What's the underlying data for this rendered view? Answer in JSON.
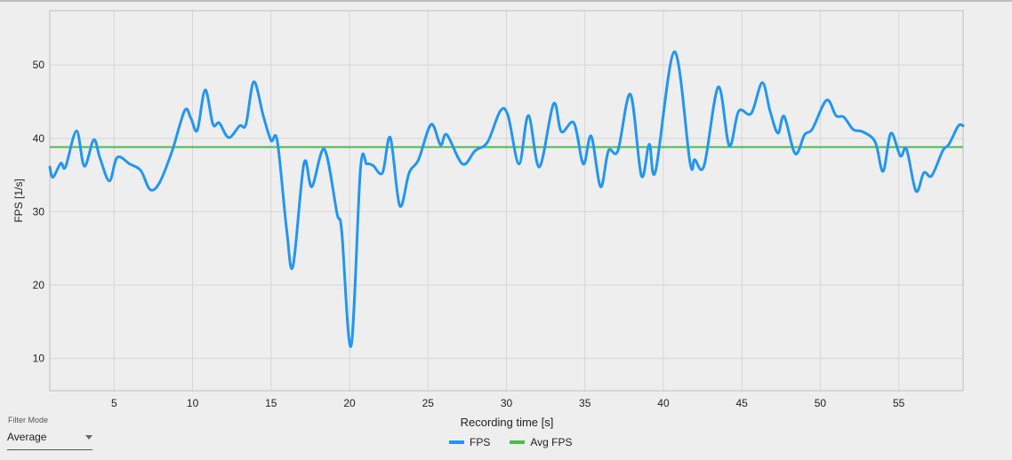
{
  "filter": {
    "label": "Filter Mode",
    "value": "Average"
  },
  "colors": {
    "fps": "#2196f3",
    "avg": "#4cbb4c",
    "grid": "#d6d6d6",
    "axis": "#bdbdbd"
  },
  "chart_data": {
    "type": "line",
    "title": "",
    "xlabel": "Recording time [s]",
    "ylabel": "FPS [1/s]",
    "xlim": [
      0.9,
      59.1
    ],
    "ylim": [
      5.6,
      57.4
    ],
    "xticks": [
      "5",
      "10",
      "15",
      "20",
      "25",
      "30",
      "35",
      "40",
      "45",
      "50",
      "55"
    ],
    "yticks": [
      "10",
      "20",
      "30",
      "40",
      "50"
    ],
    "grid": true,
    "legend": "bottom",
    "series": [
      {
        "name": "FPS",
        "x": [
          0.9,
          1.1,
          1.6,
          1.9,
          2.6,
          3.1,
          3.7,
          4.1,
          4.7,
          5.2,
          6.0,
          6.7,
          7.3,
          7.9,
          8.7,
          9.5,
          9.9,
          10.3,
          10.8,
          11.3,
          11.7,
          12.3,
          13.0,
          13.4,
          13.9,
          14.5,
          15.0,
          15.4,
          16.0,
          16.4,
          17.1,
          17.6,
          18.4,
          19.2,
          19.5,
          20.1,
          20.7,
          21.1,
          21.5,
          22.1,
          22.6,
          23.2,
          23.8,
          24.4,
          25.2,
          25.8,
          26.2,
          27.2,
          28.0,
          28.8,
          29.6,
          30.1,
          30.8,
          31.4,
          32.1,
          33.0,
          33.5,
          34.3,
          34.9,
          35.4,
          36.0,
          36.5,
          37.1,
          37.9,
          38.6,
          39.1,
          39.5,
          40.7,
          41.7,
          42.0,
          42.6,
          43.5,
          44.2,
          44.8,
          45.6,
          46.3,
          46.8,
          47.3,
          47.7,
          48.4,
          49.0,
          49.5,
          50.4,
          51.0,
          51.5,
          52.1,
          52.7,
          53.5,
          54.0,
          54.5,
          55.1,
          55.5,
          56.1,
          56.6,
          57.1,
          57.8,
          58.2,
          58.8,
          59.1
        ],
        "y": [
          36.1,
          34.7,
          36.6,
          36.1,
          41.0,
          36.2,
          39.8,
          37.3,
          34.2,
          37.4,
          36.5,
          35.6,
          33.0,
          34.0,
          38.3,
          43.8,
          42.7,
          41.1,
          46.6,
          41.9,
          42.1,
          40.1,
          41.7,
          41.9,
          47.7,
          43.1,
          39.7,
          39.6,
          27.4,
          22.6,
          36.6,
          33.4,
          38.5,
          29.8,
          27.4,
          11.7,
          35.9,
          36.5,
          36.3,
          35.3,
          40.1,
          30.8,
          35.3,
          37.1,
          41.9,
          39.1,
          40.5,
          36.5,
          38.3,
          39.5,
          43.7,
          43.1,
          36.5,
          43.1,
          36.1,
          44.7,
          40.9,
          42.1,
          36.5,
          40.3,
          33.4,
          38.3,
          38.3,
          46.0,
          34.9,
          39.2,
          35.5,
          51.8,
          36.7,
          37.1,
          36.3,
          47.0,
          39.0,
          43.7,
          43.4,
          47.6,
          43.7,
          40.7,
          43.0,
          37.9,
          40.5,
          41.3,
          45.2,
          43.1,
          42.9,
          41.2,
          40.9,
          39.5,
          35.5,
          40.7,
          37.6,
          38.5,
          32.8,
          35.3,
          34.9,
          38.3,
          39.2,
          41.7,
          41.7
        ]
      },
      {
        "name": "Avg FPS",
        "y_const": 38.8
      }
    ]
  }
}
